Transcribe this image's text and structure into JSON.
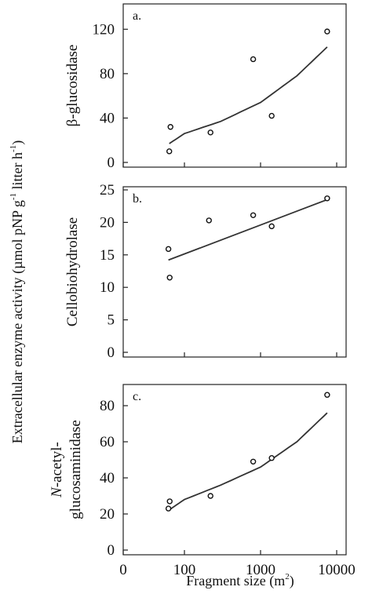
{
  "figure": {
    "shared_ylabel_parts": [
      "Extracellular enzyme activity (µmol pNP g",
      "-1",
      " litter h",
      "-1",
      ")"
    ],
    "xlabel_parts": [
      "Fragment size (m",
      "2",
      ")"
    ]
  },
  "chart_data": [
    {
      "type": "scatter",
      "panel_label": "a.",
      "ylabel_lines": [
        "β-glucosidase"
      ],
      "ylim": [
        0,
        140
      ],
      "y_ticks": [
        0,
        40,
        80,
        120
      ],
      "x_scale": "log",
      "x_tick_values": [
        1,
        100,
        1000,
        10000
      ],
      "x_tick_labels": [
        "0",
        "100",
        "1000",
        "10000"
      ],
      "show_x_tick_labels": false,
      "points": [
        {
          "x": 32,
          "y": 10
        },
        {
          "x": 35,
          "y": 32
        },
        {
          "x": 220,
          "y": 27
        },
        {
          "x": 800,
          "y": 93
        },
        {
          "x": 1400,
          "y": 42
        },
        {
          "x": 7500,
          "y": 118
        }
      ],
      "fit": {
        "type": "exponential",
        "x": [
          32,
          100,
          300,
          1000,
          3000,
          7500
        ],
        "y": [
          17,
          26,
          37,
          54,
          78,
          104
        ]
      }
    },
    {
      "type": "scatter",
      "panel_label": "b.",
      "ylabel_lines": [
        "Cellobiohydrolase"
      ],
      "ylim": [
        0,
        25
      ],
      "y_ticks": [
        0,
        5,
        10,
        15,
        20,
        25
      ],
      "x_scale": "log",
      "x_tick_values": [
        1,
        100,
        1000,
        10000
      ],
      "x_tick_labels": [
        "0",
        "100",
        "1000",
        "10000"
      ],
      "show_x_tick_labels": false,
      "points": [
        {
          "x": 30,
          "y": 15.9
        },
        {
          "x": 33,
          "y": 11.5
        },
        {
          "x": 210,
          "y": 20.3
        },
        {
          "x": 800,
          "y": 21.1
        },
        {
          "x": 1400,
          "y": 19.4
        },
        {
          "x": 7500,
          "y": 23.7
        }
      ],
      "fit": {
        "type": "linear",
        "x": [
          30,
          7500
        ],
        "y": [
          14.2,
          23.5
        ]
      }
    },
    {
      "type": "scatter",
      "panel_label": "c.",
      "ylabel_lines": [
        "N-acetyl-",
        "glucosaminidase"
      ],
      "ylim": [
        0,
        90
      ],
      "y_ticks": [
        0,
        20,
        40,
        60,
        80
      ],
      "x_scale": "log",
      "x_tick_values": [
        1,
        100,
        1000,
        10000
      ],
      "x_tick_labels": [
        "0",
        "100",
        "1000",
        "10000"
      ],
      "show_x_tick_labels": true,
      "points": [
        {
          "x": 30,
          "y": 23
        },
        {
          "x": 33,
          "y": 27
        },
        {
          "x": 220,
          "y": 30
        },
        {
          "x": 800,
          "y": 49
        },
        {
          "x": 1400,
          "y": 51
        },
        {
          "x": 7500,
          "y": 86
        }
      ],
      "fit": {
        "type": "exponential",
        "x": [
          30,
          100,
          300,
          1000,
          3000,
          7500
        ],
        "y": [
          22,
          28,
          36,
          46,
          60,
          76
        ]
      }
    }
  ]
}
